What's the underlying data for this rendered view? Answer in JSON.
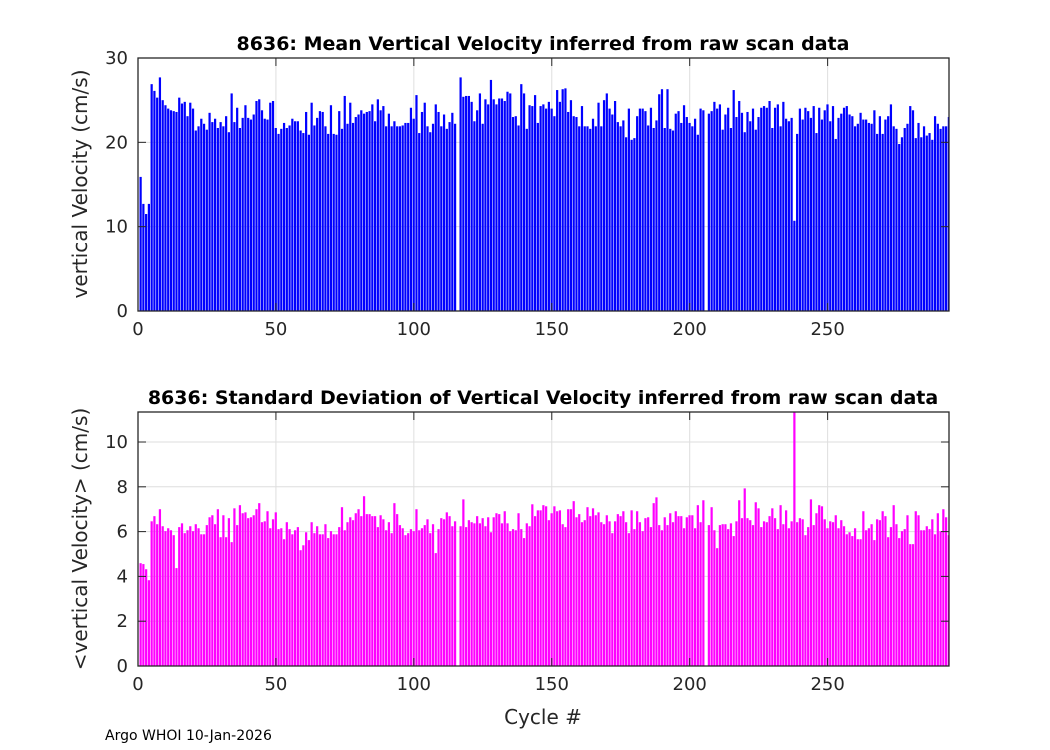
{
  "footer": "Argo WHOI 10-Jan-2026",
  "chart_data": [
    {
      "type": "bar",
      "title": "8636: Mean Vertical Velocity inferred from raw scan data",
      "xlabel": "",
      "ylabel": "vertical Velocity (cm/s)",
      "xlim": [
        0,
        294
      ],
      "ylim": [
        0,
        30
      ],
      "xticks": [
        0,
        50,
        100,
        150,
        200,
        250
      ],
      "yticks": [
        0,
        10,
        20,
        30
      ],
      "grid": true,
      "color": "#0000ff",
      "x_start": 1,
      "values": [
        15.9,
        12.7,
        11.5,
        12.7,
        26.9,
        26.1,
        25.3,
        27.7,
        25.0,
        24.4,
        24.0,
        23.8,
        23.7,
        23.6,
        25.3,
        24.6,
        24.8,
        23.1,
        24.7,
        24.0,
        21.4,
        21.9,
        22.8,
        22.2,
        21.5,
        23.5,
        22.4,
        22.8,
        21.7,
        22.4,
        21.9,
        23.1,
        21.2,
        25.8,
        22.4,
        24.1,
        21.7,
        22.9,
        24.4,
        22.9,
        22.7,
        23.3,
        24.9,
        25.1,
        23.8,
        22.8,
        22.7,
        24.7,
        24.9,
        21.7,
        21.0,
        21.6,
        22.3,
        21.7,
        22.0,
        22.8,
        22.5,
        22.5,
        21.4,
        21.1,
        23.6,
        20.9,
        24.7,
        22.0,
        22.9,
        23.7,
        23.6,
        21.9,
        21.0,
        24.4,
        21.0,
        20.9,
        23.7,
        21.6,
        25.5,
        22.2,
        24.7,
        22.3,
        23.0,
        23.3,
        23.8,
        23.4,
        23.6,
        23.7,
        24.5,
        22.5,
        25.1,
        23.8,
        24.3,
        21.9,
        23.4,
        21.9,
        22.5,
        21.9,
        21.9,
        22.0,
        22.3,
        22.3,
        24.1,
        22.8,
        25.6,
        21.1,
        23.6,
        24.7,
        21.9,
        21.2,
        22.2,
        24.5,
        23.6,
        21.9,
        23.3,
        21.6,
        22.4,
        23.5,
        22.2,
        null,
        27.7,
        25.4,
        25.5,
        25.5,
        24.8,
        22.5,
        23.8,
        25.8,
        22.2,
        25.1,
        24.5,
        27.4,
        25.1,
        24.5,
        25.2,
        25.2,
        24.9,
        26.0,
        25.8,
        23.0,
        23.1,
        22.0,
        26.9,
        25.8,
        21.6,
        24.4,
        24.3,
        25.6,
        22.3,
        24.3,
        24.5,
        24.0,
        24.8,
        24.0,
        23.1,
        26.2,
        24.8,
        26.3,
        26.4,
        23.6,
        25.0,
        23.1,
        23.0,
        21.9,
        24.3,
        21.9,
        21.9,
        21.6,
        22.8,
        21.9,
        24.7,
        21.9,
        25.0,
        25.8,
        24.0,
        23.3,
        24.9,
        22.4,
        21.9,
        22.6,
        20.6,
        24.0,
        20.3,
        20.5,
        23.1,
        24.0,
        24.0,
        23.7,
        22.0,
        24.1,
        21.7,
        22.6,
        25.7,
        26.3,
        21.7,
        26.3,
        21.6,
        21.4,
        23.4,
        23.7,
        22.3,
        24.4,
        23.0,
        22.3,
        21.9,
        22.8,
        20.9,
        24.0,
        23.8,
        null,
        23.4,
        23.7,
        24.8,
        24.0,
        24.5,
        21.5,
        23.3,
        24.1,
        21.7,
        26.2,
        23.0,
        24.9,
        23.5,
        21.2,
        23.6,
        22.5,
        24.0,
        21.5,
        23.0,
        24.1,
        24.3,
        24.1,
        24.9,
        21.7,
        24.1,
        24.5,
        21.9,
        24.8,
        22.8,
        22.5,
        22.9,
        10.7,
        21.0,
        24.0,
        22.7,
        24.1,
        23.7,
        22.9,
        24.3,
        21.1,
        24.1,
        22.7,
        23.8,
        24.5,
        22.5,
        24.3,
        20.4,
        22.9,
        23.4,
        24.1,
        24.3,
        23.3,
        23.1,
        21.9,
        22.2,
        23.5,
        22.7,
        22.7,
        22.3,
        22.2,
        23.8,
        21.0,
        23.1,
        21.0,
        22.7,
        23.1,
        24.5,
        21.9,
        21.6,
        19.8,
        20.6,
        21.7,
        22.2,
        24.3,
        23.8,
        20.5,
        22.3,
        20.6,
        21.9,
        20.8,
        21.1,
        20.3,
        23.1,
        22.2,
        21.6,
        21.9,
        21.9,
        23.0
      ]
    },
    {
      "type": "bar",
      "title": "8636: Standard Deviation of Vertical Velocity inferred from raw scan data",
      "xlabel": "Cycle #",
      "ylabel": "<vertical Velocity> (cm/s)",
      "xlim": [
        0,
        294
      ],
      "ylim": [
        0,
        11.34
      ],
      "xticks": [
        0,
        50,
        100,
        150,
        200,
        250
      ],
      "yticks": [
        0,
        2,
        4,
        6,
        8,
        10
      ],
      "grid": true,
      "color": "#ff00ff",
      "x_start": 1,
      "values": [
        4.59,
        4.55,
        4.32,
        3.83,
        6.46,
        6.69,
        6.33,
        7.0,
        6.24,
        6.02,
        6.15,
        6.06,
        5.84,
        4.37,
        6.2,
        6.37,
        5.93,
        6.06,
        6.24,
        6.02,
        6.33,
        6.15,
        5.88,
        5.88,
        6.29,
        6.64,
        6.73,
        6.33,
        7.0,
        5.75,
        6.73,
        5.75,
        6.6,
        5.53,
        7.04,
        6.29,
        7.18,
        6.82,
        6.86,
        6.6,
        6.64,
        6.73,
        7.0,
        7.27,
        6.42,
        6.46,
        6.91,
        6.15,
        6.55,
        6.86,
        6.11,
        6.15,
        5.66,
        6.42,
        6.11,
        5.88,
        6.06,
        6.2,
        5.17,
        5.39,
        5.97,
        5.62,
        6.42,
        5.93,
        6.24,
        5.88,
        5.88,
        6.33,
        5.71,
        6.02,
        5.88,
        5.88,
        6.2,
        7.09,
        6.06,
        6.42,
        6.64,
        6.51,
        6.82,
        7.0,
        6.69,
        7.58,
        6.78,
        6.78,
        6.69,
        6.69,
        6.2,
        6.73,
        6.55,
        6.06,
        6.42,
        5.93,
        7.27,
        6.78,
        6.29,
        6.15,
        5.84,
        5.93,
        6.11,
        6.02,
        7.0,
        6.06,
        6.15,
        6.29,
        6.55,
        5.93,
        6.33,
        5.04,
        6.11,
        6.6,
        6.55,
        6.86,
        6.69,
        6.24,
        6.46,
        null,
        6.24,
        7.44,
        6.2,
        6.51,
        6.42,
        6.37,
        6.69,
        6.37,
        6.6,
        6.24,
        6.64,
        5.97,
        6.64,
        6.82,
        6.78,
        6.37,
        6.91,
        6.37,
        6.02,
        6.11,
        6.06,
        6.82,
        6.11,
        5.71,
        6.37,
        6.24,
        7.22,
        6.69,
        6.95,
        6.95,
        7.18,
        7.13,
        6.51,
        6.82,
        7.13,
        6.91,
        6.95,
        6.33,
        6.2,
        7.0,
        7.0,
        7.36,
        6.64,
        6.78,
        6.42,
        6.51,
        7.09,
        6.69,
        7.04,
        6.73,
        6.86,
        6.42,
        6.33,
        6.73,
        6.46,
        5.93,
        6.46,
        6.78,
        6.69,
        6.91,
        6.42,
        5.93,
        6.95,
        6.11,
        6.91,
        6.42,
        6.02,
        6.6,
        6.64,
        6.2,
        7.27,
        7.53,
        6.29,
        6.06,
        6.64,
        6.29,
        6.82,
        6.42,
        6.91,
        6.69,
        6.69,
        6.15,
        6.64,
        6.73,
        6.73,
        6.15,
        7.18,
        6.42,
        7.4,
        null,
        6.29,
        7.09,
        6.06,
        5.26,
        6.29,
        6.33,
        6.33,
        6.11,
        6.37,
        5.8,
        6.46,
        7.4,
        6.6,
        7.93,
        6.6,
        6.51,
        6.29,
        7.31,
        7.04,
        6.2,
        6.46,
        6.42,
        6.69,
        7.04,
        6.6,
        6.11,
        7.18,
        6.33,
        6.95,
        6.15,
        6.46,
        11.34,
        6.42,
        6.6,
        6.55,
        5.84,
        6.2,
        7.44,
        6.29,
        6.82,
        7.18,
        7.13,
        6.55,
        6.15,
        6.46,
        6.42,
        6.73,
        6.15,
        6.51,
        6.24,
        5.88,
        5.97,
        5.8,
        6.15,
        5.66,
        5.66,
        6.91,
        6.06,
        6.15,
        6.33,
        5.62,
        6.55,
        6.51,
        6.91,
        6.69,
        5.75,
        6.2,
        7.18,
        6.33,
        5.71,
        6.02,
        6.11,
        6.73,
        5.44,
        5.44,
        6.91,
        6.73,
        6.06,
        6.06,
        6.24,
        6.11,
        6.55,
        5.88,
        6.82,
        6.02,
        7.0,
        6.64,
        5.84
      ]
    }
  ]
}
